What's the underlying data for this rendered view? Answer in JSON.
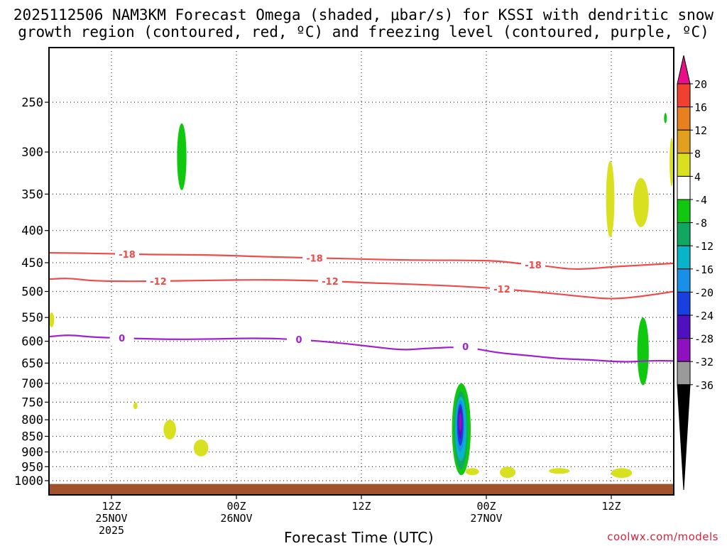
{
  "header": {
    "title_line1": "2025112506 NAM3KM Forecast Omega (shaded, μbar/s) for KSSI with dendritic snow",
    "title_line2": "growth region (contoured, red, ºC) and freezing level (contoured, purple, ºC)"
  },
  "credit": "coolwx.com/models",
  "chart_data": {
    "type": "contour",
    "title": "2025112506 NAM3KM Forecast Omega (shaded, μbar/s) for KSSI with dendritic snow growth region (contoured, red, ºC) and freezing level (contoured, purple, ºC)",
    "xlabel": "Forecast Time (UTC)",
    "ylabel": "",
    "xlim_hours": [
      0,
      60
    ],
    "ylim_hpa": [
      1040,
      200
    ],
    "y_ticks": [
      250,
      300,
      350,
      400,
      450,
      500,
      550,
      600,
      650,
      700,
      750,
      800,
      850,
      900,
      950,
      1000
    ],
    "x_ticks": [
      {
        "hour": 6,
        "lines": [
          "12Z",
          "25NOV",
          "2025"
        ]
      },
      {
        "hour": 18,
        "lines": [
          "00Z",
          "26NOV"
        ]
      },
      {
        "hour": 30,
        "lines": [
          "12Z"
        ]
      },
      {
        "hour": 42,
        "lines": [
          "00Z",
          "27NOV"
        ]
      },
      {
        "hour": 54,
        "lines": [
          "12Z"
        ]
      }
    ],
    "colorbar": {
      "labels": [
        "20",
        "16",
        "12",
        "8",
        "4",
        "-4",
        "-8",
        "-12",
        "-16",
        "-20",
        "-24",
        "-28",
        "-32",
        "-36"
      ],
      "colors": [
        "#d8e020",
        "#ffffff",
        "#10c810",
        "#10a860",
        "#08b4c8",
        "#1890e8",
        "#1840e0",
        "#5010c0",
        "#8e10c0",
        "#9a9a9a",
        "#000000",
        "#e0a020",
        "#e88020",
        "#f04030",
        "#e81088"
      ]
    },
    "contours": [
      {
        "name": "-18",
        "color": "#f04a4a",
        "label_at_hours": [
          7.5,
          25.5,
          46.5
        ],
        "points": [
          [
            0,
            434
          ],
          [
            5,
            435
          ],
          [
            10,
            437
          ],
          [
            15,
            437
          ],
          [
            20,
            440
          ],
          [
            25,
            442
          ],
          [
            30,
            444
          ],
          [
            35,
            446
          ],
          [
            40,
            446
          ],
          [
            43,
            447
          ],
          [
            45,
            451
          ],
          [
            48,
            456
          ],
          [
            50,
            461
          ],
          [
            52,
            460
          ],
          [
            54,
            457
          ],
          [
            57,
            454
          ],
          [
            60,
            451
          ]
        ]
      },
      {
        "name": "-12",
        "color": "#f04a4a",
        "label_at_hours": [
          10.5,
          27,
          43.5
        ],
        "points": [
          [
            0,
            478
          ],
          [
            2,
            476
          ],
          [
            4,
            481
          ],
          [
            8,
            482
          ],
          [
            12,
            481
          ],
          [
            16,
            480
          ],
          [
            20,
            479
          ],
          [
            25,
            480
          ],
          [
            30,
            484
          ],
          [
            35,
            487
          ],
          [
            40,
            491
          ],
          [
            44,
            496
          ],
          [
            48,
            503
          ],
          [
            52,
            511
          ],
          [
            54,
            514
          ],
          [
            56,
            511
          ],
          [
            58,
            506
          ],
          [
            60,
            500
          ]
        ]
      },
      {
        "name": "0",
        "color": "#a020d0",
        "label_at_hours": [
          7,
          24,
          40
        ],
        "points": [
          [
            0,
            590
          ],
          [
            2,
            586
          ],
          [
            4,
            591
          ],
          [
            8,
            594
          ],
          [
            12,
            596
          ],
          [
            16,
            595
          ],
          [
            20,
            593
          ],
          [
            24,
            596
          ],
          [
            28,
            604
          ],
          [
            31,
            612
          ],
          [
            34,
            620
          ],
          [
            36,
            616
          ],
          [
            40,
            612
          ],
          [
            43,
            626
          ],
          [
            46,
            632
          ],
          [
            49,
            640
          ],
          [
            52,
            642
          ],
          [
            55,
            648
          ],
          [
            58,
            644
          ],
          [
            60,
            645
          ]
        ]
      }
    ],
    "shaded_regions": [
      {
        "value": "-4 to -8",
        "color": "#10c810",
        "hours": [
          12.3,
          13.2
        ],
        "hpa": [
          270,
          345
        ]
      },
      {
        "value": "4 to 8",
        "color": "#d8e020",
        "hours": [
          53.5,
          54.3
        ],
        "hpa": [
          310,
          410
        ]
      },
      {
        "value": "4 to 8",
        "color": "#d8e020",
        "hours": [
          56.1,
          57.6
        ],
        "hpa": [
          330,
          395
        ]
      },
      {
        "value": "4 to 8",
        "color": "#d8e020",
        "hours": [
          59.6,
          60
        ],
        "hpa": [
          285,
          340
        ]
      },
      {
        "value": "-4 to -8",
        "color": "#10c810",
        "hours": [
          59.1,
          59.3
        ],
        "hpa": [
          260,
          270
        ]
      },
      {
        "value": "-4 to -8",
        "color": "#10c810",
        "hours": [
          56.5,
          57.6
        ],
        "hpa": [
          550,
          705
        ]
      },
      {
        "value": "4 to 8",
        "color": "#d8e020",
        "hours": [
          0,
          0.5
        ],
        "hpa": [
          540,
          570
        ]
      },
      {
        "value": "4 to 8",
        "color": "#d8e020",
        "hours": [
          8.1,
          8.5
        ],
        "hpa": [
          750,
          770
        ]
      },
      {
        "value": "4 to 8",
        "color": "#d8e020",
        "hours": [
          11,
          12.2
        ],
        "hpa": [
          800,
          860
        ]
      },
      {
        "value": "4 to 8",
        "color": "#d8e020",
        "hours": [
          13.9,
          15.3
        ],
        "hpa": [
          860,
          915
        ]
      },
      {
        "value": "-4 to -8",
        "color": "#10c810",
        "hours": [
          38.7,
          40.5
        ],
        "hpa": [
          700,
          980
        ]
      },
      {
        "value": "-8 to -12",
        "color": "#10a860",
        "hours": [
          38.9,
          40.2
        ],
        "hpa": [
          720,
          960
        ]
      },
      {
        "value": "-12 to -16",
        "color": "#08b4c8",
        "hours": [
          39,
          40.1
        ],
        "hpa": [
          735,
          930
        ]
      },
      {
        "value": "-16 to -20",
        "color": "#1890e8",
        "hours": [
          39.1,
          39.9
        ],
        "hpa": [
          745,
          900
        ]
      },
      {
        "value": "-20 to -24",
        "color": "#1840e0",
        "hours": [
          39.2,
          39.8
        ],
        "hpa": [
          755,
          880
        ]
      },
      {
        "value": "-24 to -28",
        "color": "#5010c0",
        "hours": [
          39.3,
          39.7
        ],
        "hpa": [
          765,
          860
        ]
      },
      {
        "value": "-28 to -32",
        "color": "#8e10c0",
        "hours": [
          39.4,
          39.6
        ],
        "hpa": [
          780,
          835
        ]
      },
      {
        "value": "4 to 8",
        "color": "#d8e020",
        "hours": [
          40,
          41.3
        ],
        "hpa": [
          955,
          980
        ]
      },
      {
        "value": "4 to 8",
        "color": "#d8e020",
        "hours": [
          43.3,
          44.8
        ],
        "hpa": [
          950,
          990
        ]
      },
      {
        "value": "4 to 8",
        "color": "#d8e020",
        "hours": [
          48,
          50
        ],
        "hpa": [
          955,
          975
        ]
      },
      {
        "value": "4 to 8",
        "color": "#d8e020",
        "hours": [
          54,
          56
        ],
        "hpa": [
          955,
          990
        ]
      }
    ],
    "surface_fill": {
      "color": "#a0522d",
      "hpa_top": 1012
    }
  }
}
